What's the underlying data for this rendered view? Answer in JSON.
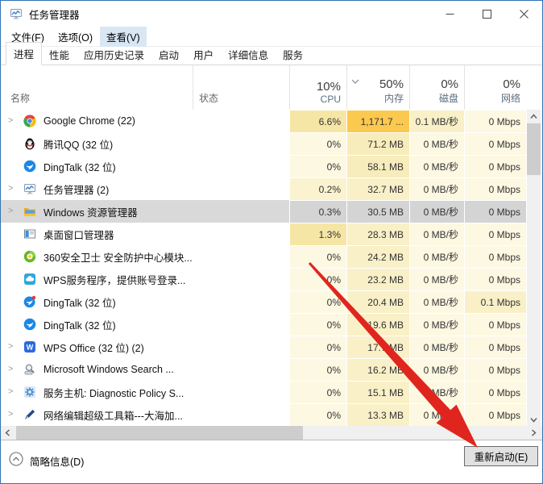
{
  "window": {
    "title": "任务管理器"
  },
  "menu": {
    "items": [
      {
        "label": "文件(F)"
      },
      {
        "label": "选项(O)"
      },
      {
        "label": "查看(V)"
      }
    ],
    "highlighted_index": 2
  },
  "tabs": {
    "items": [
      {
        "label": "进程"
      },
      {
        "label": "性能"
      },
      {
        "label": "应用历史记录"
      },
      {
        "label": "启动"
      },
      {
        "label": "用户"
      },
      {
        "label": "详细信息"
      },
      {
        "label": "服务"
      }
    ],
    "active_index": 0
  },
  "header": {
    "name": "名称",
    "status": "状态",
    "cpu": {
      "pct": "10%",
      "label": "CPU"
    },
    "memory": {
      "pct": "50%",
      "label": "内存",
      "sorted": true
    },
    "disk": {
      "pct": "0%",
      "label": "磁盘"
    },
    "network": {
      "pct": "0%",
      "label": "网络"
    }
  },
  "processes": [
    {
      "name": "Google Chrome (22)",
      "icon": "chrome-icon",
      "expandable": true,
      "selected": false,
      "cpu": "6.6%",
      "memory": "1,171.7 ...",
      "disk": "0.1 MB/秒",
      "network": "0 Mbps",
      "heat": {
        "cpu": "heat2",
        "mem": "heat4",
        "disk": "heat1",
        "net": "heat0"
      }
    },
    {
      "name": "腾讯QQ (32 位)",
      "icon": "qq-icon",
      "expandable": false,
      "selected": false,
      "cpu": "0%",
      "memory": "71.2 MB",
      "disk": "0 MB/秒",
      "network": "0 Mbps",
      "heat": {
        "cpu": "heat0",
        "mem": "heat1d",
        "disk": "heat0",
        "net": "heat0"
      }
    },
    {
      "name": "DingTalk (32 位)",
      "icon": "dingtalk-icon",
      "expandable": false,
      "selected": false,
      "cpu": "0%",
      "memory": "58.1 MB",
      "disk": "0 MB/秒",
      "network": "0 Mbps",
      "heat": {
        "cpu": "heat0",
        "mem": "heat1d",
        "disk": "heat0",
        "net": "heat0"
      }
    },
    {
      "name": "任务管理器 (2)",
      "icon": "taskmgr-icon",
      "expandable": true,
      "selected": false,
      "cpu": "0.2%",
      "memory": "32.7 MB",
      "disk": "0 MB/秒",
      "network": "0 Mbps",
      "heat": {
        "cpu": "heatlow",
        "mem": "heat1",
        "disk": "heat0",
        "net": "heat0"
      }
    },
    {
      "name": "Windows 资源管理器",
      "icon": "explorer-icon",
      "expandable": true,
      "selected": true,
      "cpu": "0.3%",
      "memory": "30.5 MB",
      "disk": "0 MB/秒",
      "network": "0 Mbps",
      "heat": {
        "cpu": "sel",
        "mem": "sel",
        "disk": "sel",
        "net": "sel"
      }
    },
    {
      "name": "桌面窗口管理器",
      "icon": "dwm-icon",
      "expandable": false,
      "selected": false,
      "cpu": "1.3%",
      "memory": "28.3 MB",
      "disk": "0 MB/秒",
      "network": "0 Mbps",
      "heat": {
        "cpu": "heat2",
        "mem": "heat1",
        "disk": "heat0",
        "net": "heat0"
      }
    },
    {
      "name": "360安全卫士 安全防护中心模块...",
      "icon": "360-icon",
      "expandable": false,
      "selected": false,
      "cpu": "0%",
      "memory": "24.2 MB",
      "disk": "0 MB/秒",
      "network": "0 Mbps",
      "heat": {
        "cpu": "heat0",
        "mem": "heat1",
        "disk": "heat0",
        "net": "heat0"
      }
    },
    {
      "name": "WPS服务程序，提供账号登录...",
      "icon": "wps-cloud-icon",
      "expandable": false,
      "selected": false,
      "cpu": "0%",
      "memory": "23.2 MB",
      "disk": "0 MB/秒",
      "network": "0 Mbps",
      "heat": {
        "cpu": "heat0",
        "mem": "heat1",
        "disk": "heat0",
        "net": "heat0"
      }
    },
    {
      "name": "DingTalk (32 位)",
      "icon": "dingtalk-badge-icon",
      "expandable": false,
      "selected": false,
      "cpu": "0%",
      "memory": "20.4 MB",
      "disk": "0 MB/秒",
      "network": "0.1 Mbps",
      "heat": {
        "cpu": "heat0",
        "mem": "heat1",
        "disk": "heat0",
        "net": "heat1"
      }
    },
    {
      "name": "DingTalk (32 位)",
      "icon": "dingtalk-icon",
      "expandable": false,
      "selected": false,
      "cpu": "0%",
      "memory": "19.6 MB",
      "disk": "0 MB/秒",
      "network": "0 Mbps",
      "heat": {
        "cpu": "heat0",
        "mem": "heat1",
        "disk": "heat0",
        "net": "heat0"
      }
    },
    {
      "name": "WPS Office (32 位) (2)",
      "icon": "wps-office-icon",
      "expandable": true,
      "selected": false,
      "cpu": "0%",
      "memory": "17.7 MB",
      "disk": "0 MB/秒",
      "network": "0 Mbps",
      "heat": {
        "cpu": "heat0",
        "mem": "heat1",
        "disk": "heat0",
        "net": "heat0"
      }
    },
    {
      "name": "Microsoft Windows Search ...",
      "icon": "search-icon",
      "expandable": true,
      "selected": false,
      "cpu": "0%",
      "memory": "16.2 MB",
      "disk": "0 MB/秒",
      "network": "0 Mbps",
      "heat": {
        "cpu": "heat0",
        "mem": "heat1",
        "disk": "heat0",
        "net": "heat0"
      }
    },
    {
      "name": "服务主机: Diagnostic Policy S...",
      "icon": "gear-icon",
      "expandable": true,
      "selected": false,
      "cpu": "0%",
      "memory": "15.1 MB",
      "disk": "0 MB/秒",
      "network": "0 Mbps",
      "heat": {
        "cpu": "heat0",
        "mem": "heat1",
        "disk": "heat0",
        "net": "heat0"
      }
    },
    {
      "name": "网络编辑超级工具箱---大海加...",
      "icon": "pen-icon",
      "expandable": true,
      "selected": false,
      "cpu": "0%",
      "memory": "13.3 MB",
      "disk": "0 MB/秒",
      "network": "0 Mbps",
      "heat": {
        "cpu": "heat0",
        "mem": "heat1",
        "disk": "heat0",
        "net": "heat0"
      }
    }
  ],
  "footer": {
    "toggle_label": "简略信息(D)",
    "restart_label": "重新启动(E)"
  },
  "colors": {
    "heat0": "#fdf8e2",
    "heat1": "#f9f0c8",
    "heat1d": "#f7ecbb",
    "heat2": "#f6e6a5",
    "heat4": "#fcc94f",
    "heatlow": "#fbf3d0",
    "sel": "#d4d4d4",
    "selected_row": "#d9d9d9",
    "annotation_red": "#e0251f",
    "window_border": "#3173b4"
  }
}
